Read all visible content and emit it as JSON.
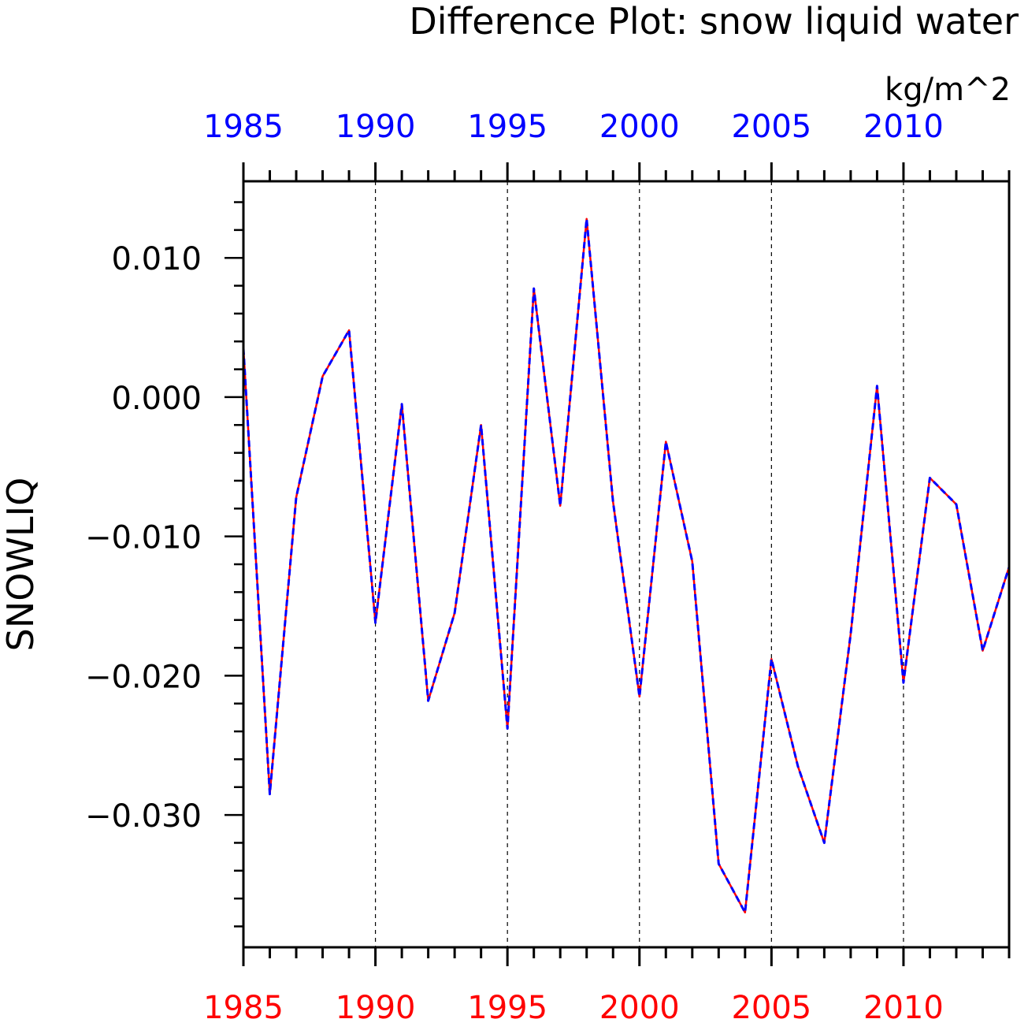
{
  "chart_data": {
    "type": "line",
    "title": "Difference Plot: snow liquid water",
    "units": "kg/m^2",
    "ylabel": "SNOWLIQ",
    "xlabel": "",
    "xlim": [
      1985,
      2014
    ],
    "ylim": [
      -0.0395,
      0.0155
    ],
    "x_ticks": [
      1985,
      1990,
      1995,
      2000,
      2005,
      2010
    ],
    "x_tick_labels": [
      "1985",
      "1990",
      "1995",
      "2000",
      "2005",
      "2010"
    ],
    "y_ticks": [
      0.01,
      0.0,
      -0.01,
      -0.02,
      -0.03
    ],
    "y_tick_labels": [
      "0.010",
      "0.000",
      "−0.010",
      "−0.020",
      "−0.030"
    ],
    "grid": "vertical dashed at major x ticks",
    "top_axis_color": "#0000ff",
    "bottom_axis_color": "#ff0000",
    "x": [
      1985,
      1986,
      1987,
      1988,
      1989,
      1990,
      1991,
      1992,
      1993,
      1994,
      1995,
      1996,
      1997,
      1998,
      1999,
      2000,
      2001,
      2002,
      2003,
      2004,
      2005,
      2006,
      2007,
      2008,
      2009,
      2010,
      2011,
      2012,
      2013,
      2014
    ],
    "series": [
      {
        "color": "#ff0000",
        "style": "solid",
        "values": [
          0.0035,
          -0.0285,
          -0.0072,
          0.0015,
          0.0048,
          -0.0162,
          -0.0005,
          -0.0218,
          -0.0155,
          -0.002,
          -0.0238,
          0.0078,
          -0.0078,
          0.0128,
          -0.0075,
          -0.0215,
          -0.0032,
          -0.0118,
          -0.0335,
          -0.037,
          -0.0188,
          -0.0265,
          -0.032,
          -0.017,
          0.0008,
          -0.0205,
          -0.0058,
          -0.0077,
          -0.0182,
          -0.0122
        ]
      },
      {
        "color": "#0000ff",
        "style": "dashed",
        "values": [
          0.0035,
          -0.0285,
          -0.0072,
          0.0015,
          0.0048,
          -0.0162,
          -0.0005,
          -0.0218,
          -0.0155,
          -0.002,
          -0.0238,
          0.0078,
          -0.0078,
          0.0128,
          -0.0075,
          -0.0215,
          -0.0032,
          -0.0118,
          -0.0335,
          -0.037,
          -0.0188,
          -0.0265,
          -0.032,
          -0.017,
          0.0008,
          -0.0205,
          -0.0058,
          -0.0077,
          -0.0182,
          -0.0122
        ]
      }
    ]
  }
}
